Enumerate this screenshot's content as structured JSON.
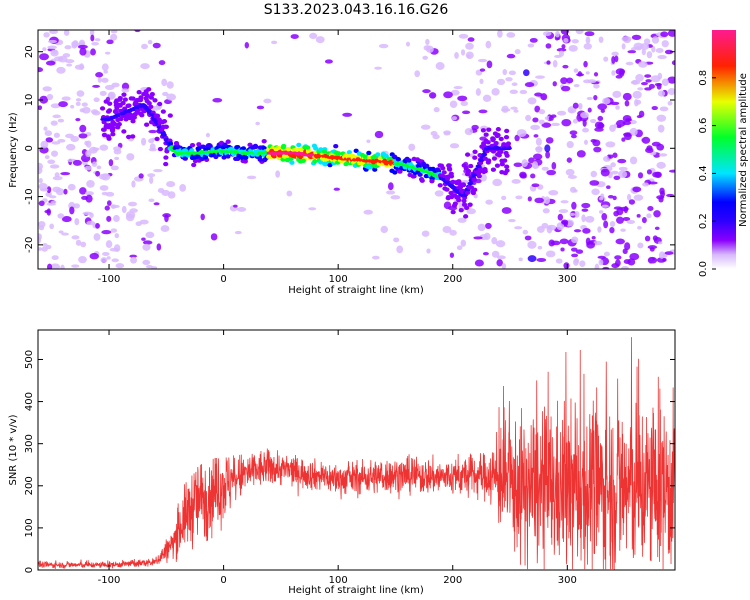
{
  "title": "S133.2023.043.16.16.G26",
  "chart_data": [
    {
      "type": "heatmap",
      "xlabel": "Height of straight line (km)",
      "ylabel": "Frequency (Hz)",
      "xlim": [
        -162,
        394
      ],
      "ylim": [
        -25,
        24.5
      ],
      "xticks": [
        -100,
        0,
        100,
        200,
        300
      ],
      "yticks": [
        -20,
        -10,
        0,
        10,
        20
      ],
      "grid": false,
      "colorbar": {
        "label": "Normalized spectral amplitude",
        "range": [
          0,
          1
        ],
        "ticks": [
          "0.0",
          "0.2",
          "0.4",
          "0.6",
          "0.8"
        ],
        "colormap": "rainbow",
        "colors": [
          "#ffffff",
          "#d8b8ff",
          "#8a00ff",
          "#2e00ff",
          "#0000ff",
          "#00e5ff",
          "#00ff2a",
          "#e8ff00",
          "#ff2200",
          "#ff1a90"
        ]
      },
      "ridge": {
        "x": [
          -100,
          -80,
          -70,
          -62,
          -55,
          -48,
          -40,
          -20,
          0,
          20,
          40,
          60,
          80,
          100,
          120,
          140,
          160,
          180,
          190,
          200,
          210,
          220,
          230,
          245
        ],
        "y": [
          6,
          8,
          9,
          7,
          4,
          1,
          -1,
          -1,
          -0.5,
          -1,
          -1,
          -1,
          -1.5,
          -2,
          -2.5,
          -2.8,
          -3.5,
          -5,
          -6,
          -8,
          -10,
          -5,
          0,
          0
        ]
      }
    },
    {
      "type": "line",
      "xlabel": "Height of straight line (km)",
      "ylabel": "SNR (10 * v/v)",
      "xlim": [
        -162,
        394
      ],
      "ylim": [
        0,
        570
      ],
      "xticks": [
        -100,
        0,
        100,
        200,
        300
      ],
      "yticks": [
        0,
        100,
        200,
        300,
        400,
        500
      ],
      "grid": false,
      "series": [
        {
          "color": "#ee3333",
          "envelope": {
            "x": [
              -162,
              -100,
              -60,
              -45,
              -35,
              -25,
              -15,
              0,
              20,
              40,
              60,
              80,
              100,
              150,
              200,
              230,
              245,
              260,
              300,
              350,
              394
            ],
            "mean": [
              12,
              12,
              18,
              60,
              120,
              160,
              180,
              200,
              230,
              245,
              235,
              225,
              215,
              225,
              220,
              225,
              210,
              190,
              190,
              195,
              195
            ],
            "spread": [
              6,
              6,
              8,
              30,
              60,
              80,
              90,
              70,
              40,
              35,
              30,
              30,
              30,
              35,
              35,
              45,
              110,
              140,
              160,
              170,
              160
            ],
            "max": [
              25,
              25,
              30,
              120,
              200,
              240,
              260,
              270,
              275,
              290,
              275,
              265,
              260,
              275,
              275,
              300,
              450,
              480,
              520,
              570,
              480
            ]
          }
        }
      ]
    }
  ]
}
